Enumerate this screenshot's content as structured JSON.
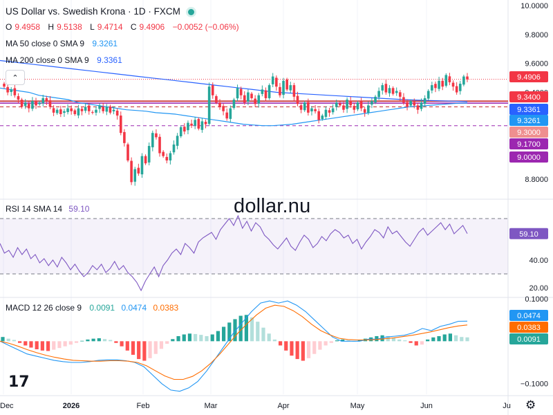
{
  "header": {
    "symbol_title": "US Dollar vs. Swedish Krona · 1D · FXCM",
    "open_label": "O",
    "open": "9.4958",
    "high_label": "H",
    "high": "9.5138",
    "low_label": "L",
    "low": "9.4714",
    "close_label": "C",
    "close": "9.4906",
    "change": "−0.0052 (−0.06%)",
    "ma50_label": "MA 50 close 0 SMA 9",
    "ma50_value": "9.3261",
    "ma200_label": "MA 200 close 0 SMA 9",
    "ma200_value": "9.3361",
    "collapse_icon": "chevron-up-icon"
  },
  "watermark": "dollar.nu",
  "colors": {
    "up": "#26a69a",
    "down": "#f23645",
    "ma50": "#2196f3",
    "ma200": "#2962ff",
    "rsi": "#7e57c2",
    "macd": "#2196f3",
    "signal": "#ff6d00",
    "level_red": "#c62828",
    "level_purple": "#9c27b0"
  },
  "chart_data": [
    {
      "type": "candlestick",
      "title": "US Dollar vs. Swedish Krona · 1D · FXCM",
      "x_ticks": [
        "Dec",
        "2026",
        "Feb",
        "Mar",
        "Apr",
        "May",
        "Jun",
        "Ju"
      ],
      "y_ticks": [
        "10.0000",
        "9.8000",
        "9.6000",
        "9.4000",
        "8.8000"
      ],
      "ylim": [
        8.71,
        10.0
      ],
      "last_price": "9.4906",
      "price_labels": [
        {
          "text": "9.4906",
          "value": 9.4906,
          "color": "#f23645"
        },
        {
          "text": "9.3400",
          "value": 9.34,
          "color": "#f23645"
        },
        {
          "text": "9.3361",
          "value": 9.3361,
          "color": "#2962ff"
        },
        {
          "text": "9.3261",
          "value": 9.3261,
          "color": "#2196f3"
        },
        {
          "text": "9.3000",
          "value": 9.3,
          "color": "#ef8f8f"
        },
        {
          "text": "9.1700",
          "value": 9.17,
          "color": "#9c27b0"
        },
        {
          "text": "9.0000",
          "value": 9.0,
          "color": "#9c27b0"
        }
      ],
      "horizontal_levels": [
        {
          "value": 9.34,
          "style": "solid",
          "color": "#c62828"
        },
        {
          "value": 9.3261,
          "style": "solid",
          "color": "#9c27b0"
        },
        {
          "value": 9.3,
          "style": "dashed",
          "color": "#c62828"
        },
        {
          "value": 9.17,
          "style": "dashed",
          "color": "#9c27b0"
        }
      ],
      "candles_close": [
        9.44,
        9.4,
        9.42,
        9.38,
        9.35,
        9.3,
        9.33,
        9.29,
        9.34,
        9.31,
        9.33,
        9.36,
        9.34,
        9.3,
        9.26,
        9.28,
        9.25,
        9.27,
        9.29,
        9.27,
        9.25,
        9.29,
        9.27,
        9.3,
        9.27,
        9.26,
        9.28,
        9.31,
        9.27,
        9.3,
        9.26,
        9.28,
        9.24,
        9.12,
        9.05,
        8.93,
        8.78,
        8.87,
        8.84,
        8.96,
        8.91,
        9.03,
        9.12,
        9.09,
        8.98,
        8.96,
        8.93,
        8.98,
        9.04,
        9.1,
        9.16,
        9.13,
        9.19,
        9.17,
        9.21,
        9.15,
        9.2,
        9.18,
        9.44,
        9.38,
        9.33,
        9.3,
        9.27,
        9.22,
        9.29,
        9.35,
        9.43,
        9.38,
        9.33,
        9.4,
        9.36,
        9.32,
        9.38,
        9.42,
        9.36,
        9.45,
        9.51,
        9.44,
        9.38,
        9.48,
        9.42,
        9.45,
        9.37,
        9.32,
        9.28,
        9.33,
        9.26,
        9.29,
        9.27,
        9.21,
        9.24,
        9.28,
        9.26,
        9.29,
        9.33,
        9.31,
        9.28,
        9.35,
        9.31,
        9.28,
        9.33,
        9.29,
        9.26,
        9.31,
        9.34,
        9.37,
        9.41,
        9.45,
        9.4,
        9.43,
        9.39,
        9.41,
        9.37,
        9.33,
        9.3,
        9.34,
        9.31,
        9.28,
        9.33,
        9.36,
        9.41,
        9.45,
        9.43,
        9.48,
        9.44,
        9.52,
        9.47,
        9.44,
        9.4,
        9.46,
        9.51,
        9.49
      ],
      "series": [
        {
          "name": "MA 50 close 0 SMA 9",
          "last": 9.3261,
          "values": [
            9.43,
            9.42,
            9.41,
            9.4,
            9.38,
            9.37,
            9.36,
            9.35,
            9.33,
            9.32,
            9.31,
            9.3,
            9.29,
            9.28,
            9.275,
            9.27,
            9.26,
            9.255,
            9.25,
            9.24,
            9.23,
            9.22,
            9.21,
            9.2,
            9.19,
            9.18,
            9.175,
            9.17,
            9.17,
            9.175,
            9.18,
            9.19,
            9.2,
            9.21,
            9.22,
            9.23,
            9.24,
            9.25,
            9.26,
            9.27,
            9.28,
            9.29,
            9.3,
            9.305,
            9.31,
            9.315,
            9.32,
            9.325,
            9.3261
          ]
        },
        {
          "name": "MA 200 close 0 SMA 9",
          "last": 9.3361,
          "values": [
            9.62,
            9.61,
            9.6,
            9.59,
            9.58,
            9.57,
            9.56,
            9.55,
            9.54,
            9.53,
            9.52,
            9.51,
            9.5,
            9.49,
            9.48,
            9.47,
            9.46,
            9.45,
            9.44,
            9.43,
            9.42,
            9.41,
            9.4,
            9.395,
            9.39,
            9.385,
            9.38,
            9.375,
            9.37,
            9.365,
            9.36,
            9.355,
            9.35,
            9.347,
            9.344,
            9.341,
            9.339,
            9.3361
          ]
        }
      ]
    },
    {
      "type": "line",
      "title": "RSI 14 SMA 14",
      "value_label": "59.10",
      "y_ticks": [
        "40.00",
        "20.00"
      ],
      "ylim": [
        14,
        80
      ],
      "bands": [
        30,
        70
      ],
      "values": [
        52,
        45,
        47,
        42,
        49,
        44,
        48,
        41,
        44,
        38,
        41,
        36,
        40,
        35,
        42,
        38,
        33,
        37,
        32,
        28,
        31,
        36,
        33,
        37,
        31,
        34,
        39,
        33,
        36,
        31,
        28,
        24,
        18,
        25,
        30,
        35,
        28,
        36,
        40,
        45,
        48,
        44,
        52,
        49,
        45,
        53,
        56,
        58,
        60,
        55,
        62,
        66,
        70,
        65,
        72,
        63,
        68,
        61,
        67,
        64,
        58,
        55,
        51,
        48,
        52,
        56,
        50,
        47,
        53,
        58,
        55,
        49,
        52,
        57,
        54,
        59,
        62,
        60,
        56,
        58,
        52,
        55,
        48,
        53,
        57,
        62,
        60,
        56,
        64,
        59,
        61,
        57,
        53,
        50,
        55,
        60,
        63,
        58,
        61,
        64,
        67,
        62,
        66,
        59,
        62,
        65,
        59.1
      ],
      "series_name": "RSI 14 SMA 14"
    },
    {
      "type": "histogram+line",
      "title": "MACD 12 26 close 9",
      "value_labels": {
        "macd": "0.0474",
        "signal": "0.0383",
        "hist": "0.0091"
      },
      "y_ticks": [
        "0.1000",
        "−0.1000"
      ],
      "ylim": [
        -0.125,
        0.1
      ],
      "histogram": [
        0.01,
        0.006,
        0.003,
        -0.004,
        -0.01,
        -0.015,
        -0.019,
        -0.022,
        -0.023,
        -0.02,
        -0.016,
        -0.012,
        -0.008,
        -0.004,
        0.001,
        0.004,
        0.006,
        0.007,
        0.005,
        0.003,
        -0.004,
        -0.012,
        -0.022,
        -0.032,
        -0.042,
        -0.046,
        -0.04,
        -0.03,
        -0.018,
        -0.006,
        0.005,
        0.012,
        0.016,
        0.018,
        0.017,
        0.015,
        0.012,
        0.016,
        0.024,
        0.034,
        0.044,
        0.052,
        0.06,
        0.062,
        0.056,
        0.046,
        0.032,
        0.018,
        0.004,
        -0.01,
        -0.022,
        -0.034,
        -0.042,
        -0.046,
        -0.04,
        -0.03,
        -0.02,
        -0.01,
        -0.004,
        0.002,
        0.004,
        0.002,
        0.0,
        0.003,
        0.006,
        0.009,
        0.012,
        0.014,
        0.012,
        0.008,
        0.004,
        0.002,
        -0.004,
        -0.01,
        -0.008,
        0.004,
        0.009,
        0.012,
        0.016,
        0.018,
        0.014,
        0.01,
        0.0091
      ],
      "macd": [
        0.0,
        -0.01,
        -0.02,
        -0.03,
        -0.035,
        -0.04,
        -0.045,
        -0.048,
        -0.05,
        -0.05,
        -0.048,
        -0.045,
        -0.044,
        -0.044,
        -0.046,
        -0.05,
        -0.06,
        -0.08,
        -0.1,
        -0.115,
        -0.118,
        -0.11,
        -0.095,
        -0.07,
        -0.04,
        -0.01,
        0.02,
        0.045,
        0.07,
        0.09,
        0.095,
        0.09,
        0.095,
        0.085,
        0.07,
        0.05,
        0.03,
        0.01,
        0.0,
        0.0,
        0.0,
        0.005,
        0.005,
        0.01,
        0.012,
        0.014,
        0.02,
        0.03,
        0.025,
        0.035,
        0.04,
        0.047,
        0.0474
      ],
      "signal": [
        0.0,
        -0.005,
        -0.012,
        -0.02,
        -0.027,
        -0.033,
        -0.038,
        -0.042,
        -0.045,
        -0.046,
        -0.047,
        -0.047,
        -0.046,
        -0.046,
        -0.047,
        -0.05,
        -0.058,
        -0.07,
        -0.082,
        -0.09,
        -0.09,
        -0.083,
        -0.07,
        -0.052,
        -0.03,
        -0.005,
        0.02,
        0.042,
        0.062,
        0.078,
        0.085,
        0.082,
        0.072,
        0.058,
        0.04,
        0.025,
        0.015,
        0.007,
        0.004,
        0.003,
        0.003,
        0.004,
        0.006,
        0.008,
        0.011,
        0.014,
        0.018,
        0.022,
        0.027,
        0.032,
        0.036,
        0.0383
      ],
      "series": [
        {
          "name": "MACD",
          "last": 0.0474
        },
        {
          "name": "Signal",
          "last": 0.0383
        }
      ]
    }
  ]
}
